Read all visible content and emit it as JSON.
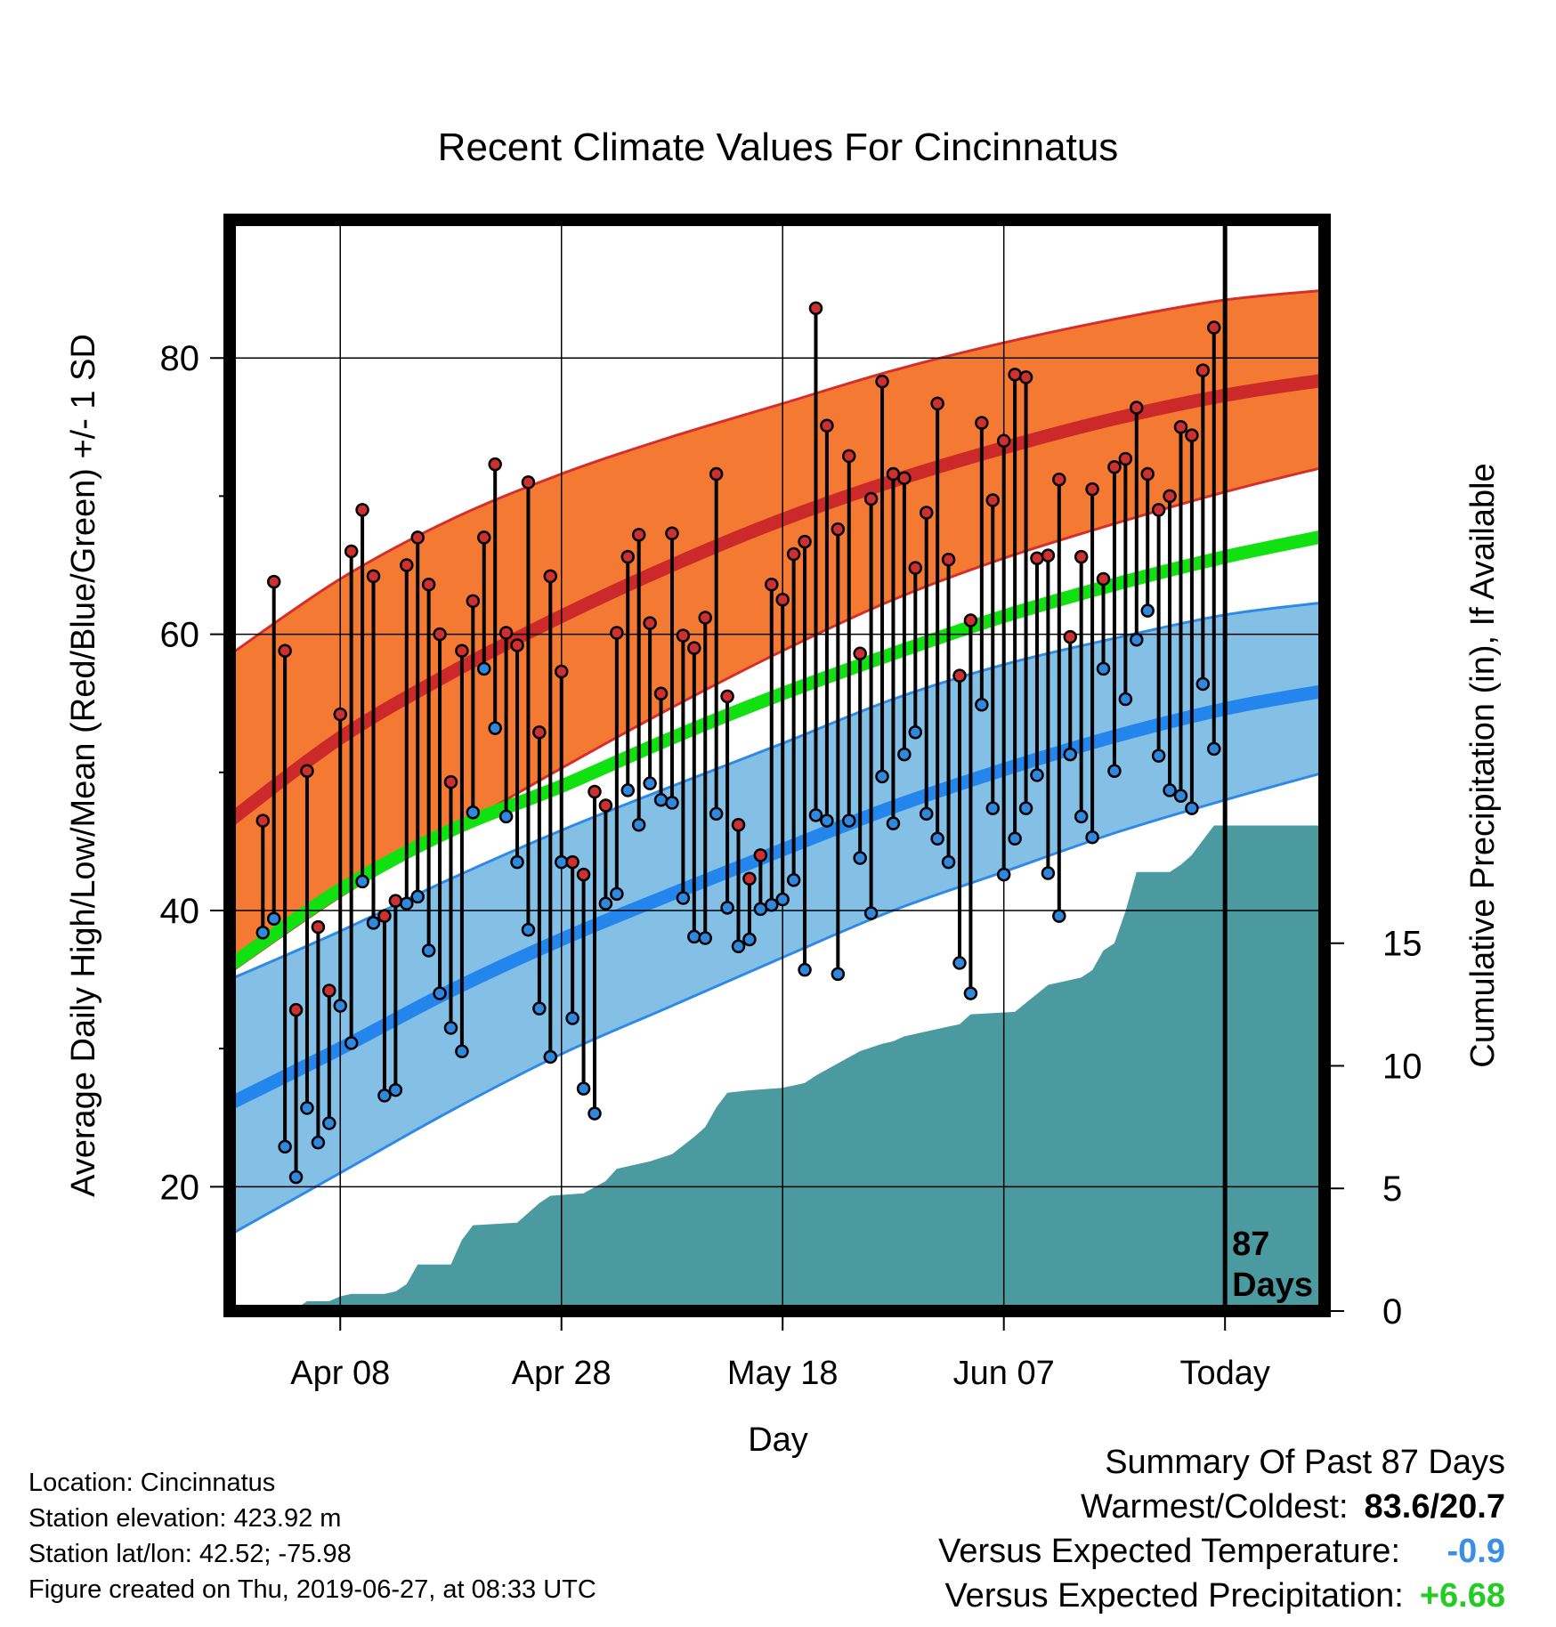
{
  "colors": {
    "high_band": "#f47a33",
    "high_band_edge": "#d62e2a",
    "high_mean": "#cc2a2a",
    "low_band": "#84bfe6",
    "low_band_edge": "#2f8ae6",
    "low_mean": "#2486ec",
    "avg_mean": "#11e011",
    "precip_fill": "#4a9aa0",
    "high_dot": "#cc3030",
    "low_dot": "#2f88dd"
  },
  "chart_data": {
    "type": "line",
    "title": "Recent Climate Values For Cincinnatus",
    "xlabel": "Day",
    "ylabel": "Average Daily High/Low/Mean (Red/Blue/Green) +/- 1 SD",
    "y2label": "Cumulative Precipitation (in), If Available",
    "xlim": [
      0,
      99
    ],
    "ylim": [
      11,
      90
    ],
    "y2lim": [
      0,
      44.5
    ],
    "grid": true,
    "x_ticks": [
      {
        "x": 10,
        "label": "Apr 08"
      },
      {
        "x": 30,
        "label": "Apr 28"
      },
      {
        "x": 50,
        "label": "May 18"
      },
      {
        "x": 70,
        "label": "Jun 07"
      },
      {
        "x": 90,
        "label": "Today"
      }
    ],
    "y_ticks": [
      20,
      40,
      60,
      80
    ],
    "y2_ticks": [
      0,
      5,
      10,
      15
    ],
    "today_marker": {
      "x": 90,
      "label_1": "87",
      "label_2": "Days"
    },
    "normal_high": {
      "x": [
        0,
        10,
        20,
        30,
        40,
        50,
        60,
        70,
        80,
        90,
        99
      ],
      "mean": [
        46.5,
        52.5,
        57.2,
        61.3,
        65.0,
        68.3,
        71.1,
        73.5,
        75.6,
        77.3,
        78.4
      ],
      "upper": [
        58.5,
        64.0,
        68.3,
        71.6,
        74.3,
        76.7,
        79.1,
        81.1,
        82.8,
        84.2,
        84.9
      ],
      "lower": [
        35.5,
        41.0,
        45.7,
        50.3,
        54.7,
        58.8,
        62.5,
        65.5,
        68.0,
        70.3,
        72.1
      ]
    },
    "normal_mean": {
      "x": [
        0,
        10,
        20,
        30,
        40,
        50,
        60,
        70,
        80,
        90,
        99
      ],
      "values": [
        36.0,
        41.5,
        45.8,
        49.0,
        52.5,
        55.7,
        58.6,
        61.3,
        63.6,
        65.6,
        67.1
      ]
    },
    "normal_low": {
      "x": [
        0,
        10,
        20,
        30,
        40,
        50,
        60,
        70,
        80,
        90,
        99
      ],
      "mean": [
        26.0,
        30.0,
        34.2,
        37.9,
        41.2,
        44.4,
        47.5,
        50.2,
        52.6,
        54.6,
        55.9
      ],
      "upper": [
        35.0,
        38.5,
        42.3,
        45.8,
        49.0,
        52.1,
        55.3,
        57.8,
        59.7,
        61.4,
        62.3
      ],
      "lower": [
        16.5,
        21.0,
        25.5,
        29.6,
        33.1,
        36.6,
        40.0,
        42.8,
        45.6,
        48.0,
        50.0
      ]
    },
    "daily": {
      "high": [
        46.5,
        63.8,
        58.8,
        32.8,
        50.1,
        38.8,
        34.2,
        54.2,
        66.0,
        69.0,
        64.2,
        39.6,
        40.7,
        65.0,
        67.0,
        63.6,
        60.0,
        49.3,
        58.8,
        62.4,
        67.0,
        72.3,
        60.1,
        59.2,
        71.0,
        52.9,
        64.2,
        57.3,
        43.5,
        42.6,
        48.6,
        47.6,
        60.1,
        65.6,
        67.2,
        60.8,
        55.7,
        67.3,
        59.9,
        59.0,
        61.2,
        71.6,
        55.5,
        46.2,
        42.3,
        44.0,
        63.6,
        62.5,
        65.8,
        66.7,
        83.6,
        75.1,
        67.6,
        72.9,
        58.6,
        69.8,
        78.3,
        71.6,
        71.3,
        64.8,
        68.8,
        76.7,
        65.4,
        57.0,
        61.0,
        75.3,
        69.7,
        74.0,
        78.8,
        78.6,
        65.5,
        65.7,
        71.2,
        59.8,
        65.6,
        70.5,
        64.0,
        72.1,
        72.7,
        76.4,
        71.6,
        69.0,
        70.0,
        75.0,
        74.4,
        79.1,
        82.2
      ],
      "low": [
        38.4,
        39.4,
        22.9,
        20.7,
        25.7,
        23.2,
        24.6,
        33.1,
        30.4,
        42.1,
        39.1,
        26.6,
        27.0,
        40.5,
        41.0,
        37.1,
        34.0,
        31.5,
        29.8,
        47.1,
        57.5,
        53.2,
        46.8,
        43.5,
        38.6,
        32.9,
        29.4,
        43.5,
        32.2,
        27.1,
        25.3,
        40.5,
        41.2,
        48.7,
        46.2,
        49.2,
        48.0,
        47.8,
        40.9,
        38.1,
        38.0,
        47.0,
        40.2,
        37.4,
        37.9,
        40.1,
        40.4,
        40.8,
        42.2,
        35.7,
        46.9,
        46.5,
        35.4,
        46.5,
        43.8,
        39.8,
        49.7,
        46.3,
        51.3,
        52.9,
        47.0,
        45.2,
        43.5,
        36.2,
        34.0,
        54.9,
        47.4,
        42.6,
        45.2,
        47.4,
        49.8,
        42.7,
        39.6,
        51.3,
        46.8,
        45.3,
        57.5,
        50.1,
        55.3,
        59.6,
        61.7,
        51.2,
        48.7,
        48.3,
        47.4,
        56.4,
        51.7
      ]
    },
    "precip": {
      "x": [
        0,
        6,
        7,
        9,
        10,
        11,
        14,
        15,
        16,
        17,
        20,
        21,
        22,
        26,
        28,
        29,
        32,
        34,
        35,
        38,
        40,
        42,
        43,
        44,
        45,
        47,
        50,
        52,
        53,
        55,
        57,
        59,
        60,
        61,
        63,
        65,
        66,
        67,
        71,
        74,
        77,
        78,
        79,
        80,
        81,
        82,
        85,
        86,
        87,
        88,
        89,
        99
      ],
      "values": [
        0,
        0.1,
        0.4,
        0.4,
        0.6,
        0.7,
        0.7,
        0.8,
        1.1,
        1.9,
        1.9,
        2.9,
        3.5,
        3.6,
        4.4,
        4.7,
        4.8,
        5.3,
        5.8,
        6.1,
        6.4,
        7.1,
        7.5,
        8.3,
        8.9,
        9.0,
        9.1,
        9.3,
        9.6,
        10.1,
        10.6,
        10.9,
        11.0,
        11.2,
        11.4,
        11.6,
        11.7,
        12.1,
        12.2,
        13.3,
        13.6,
        13.9,
        14.7,
        15.0,
        16.3,
        17.9,
        17.9,
        18.2,
        18.6,
        19.2,
        19.8,
        19.8
      ]
    }
  },
  "info": {
    "location": "Location: Cincinnatus",
    "elevation": "Station elevation: 423.92 m",
    "latlon": "Station lat/lon: 42.52; -75.98",
    "created": "Figure created on Thu, 2019-06-27, at 08:33 UTC"
  },
  "summary": {
    "title": "Summary Of Past 87 Days",
    "warmest_label": "Warmest/Coldest:",
    "warmest_value": "83.6/20.7",
    "temp_label": "Versus Expected Temperature:",
    "temp_value": "-0.9",
    "precip_label": "Versus Expected Precipitation:",
    "precip_value": "+6.68"
  }
}
